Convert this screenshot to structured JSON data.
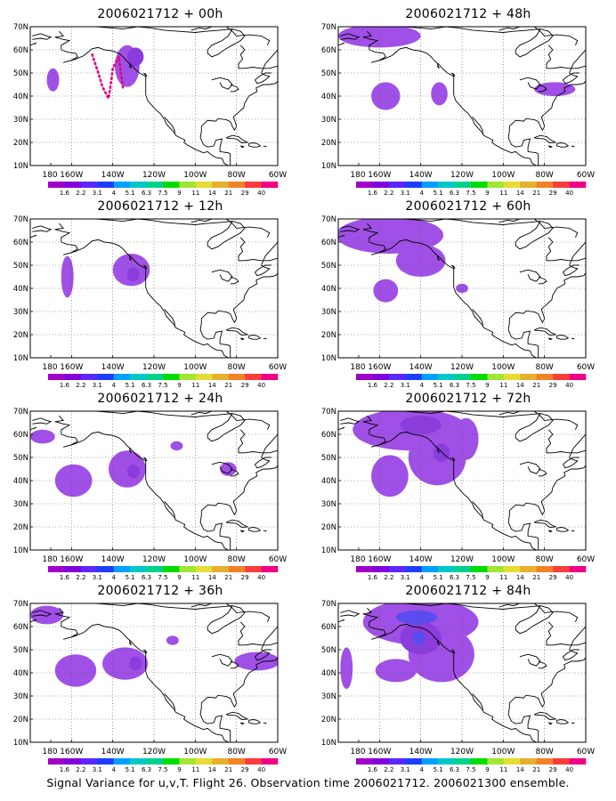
{
  "figure": {
    "footer": "Signal Variance for u,v,T. Flight 26. Observation time 2006021712. 2006021300 ensemble."
  },
  "colors": {
    "scale": [
      "#a000c8",
      "#8200dc",
      "#5a28ff",
      "#1e3cff",
      "#00a0ff",
      "#00c8c8",
      "#00d28c",
      "#00dc00",
      "#a0e632",
      "#e6dc32",
      "#e6af2d",
      "#f08228",
      "#fa3c3c",
      "#f00082"
    ],
    "shade_light": "#a050e6",
    "shade_mid": "#8a3cdc",
    "shade_dark": "#5a4cf0",
    "flight_track": "#e6007e"
  },
  "chart_data": {
    "type": "heatmap",
    "x_ticks": [
      "180",
      "160W",
      "140W",
      "120W",
      "100W",
      "80W",
      "60W"
    ],
    "y_ticks": [
      "10N",
      "20N",
      "30N",
      "40N",
      "50N",
      "60N",
      "70N"
    ],
    "xlim": [
      -180,
      -60
    ],
    "ylim": [
      10,
      70
    ],
    "grid": true,
    "colorbar_labels": [
      "1.6",
      "2.2",
      "3.1",
      "4",
      "5.1",
      "6.3",
      "7.5",
      "9",
      "11",
      "14",
      "21",
      "29",
      "40"
    ],
    "panels": [
      {
        "title": "2006021712 + 00h",
        "lead": "00h",
        "flight_track": [
          [
            -150,
            58
          ],
          [
            -147,
            50
          ],
          [
            -145,
            44
          ],
          [
            -142,
            39
          ],
          [
            -141,
            45
          ],
          [
            -140,
            52
          ],
          [
            -137,
            57
          ],
          [
            -136,
            50
          ],
          [
            -135,
            43
          ]
        ],
        "blobs": [
          {
            "lon": -169,
            "lat": 47,
            "rx": 3,
            "ry": 5,
            "level": 1
          },
          {
            "lon": -133,
            "lat": 53,
            "rx": 6,
            "ry": 9,
            "level": 1
          },
          {
            "lon": -129,
            "lat": 57,
            "rx": 4,
            "ry": 4,
            "level": 2
          }
        ]
      },
      {
        "title": "2006021712 + 12h",
        "lead": "12h",
        "blobs": [
          {
            "lon": -162,
            "lat": 45,
            "rx": 3,
            "ry": 9,
            "level": 1
          },
          {
            "lon": -131,
            "lat": 48,
            "rx": 9,
            "ry": 7,
            "level": 1
          },
          {
            "lon": -130,
            "lat": 46,
            "rx": 3,
            "ry": 3,
            "level": 2
          }
        ]
      },
      {
        "title": "2006021712 + 24h",
        "lead": "24h",
        "blobs": [
          {
            "lon": -174,
            "lat": 59,
            "rx": 6,
            "ry": 3,
            "level": 1
          },
          {
            "lon": -159,
            "lat": 40,
            "rx": 9,
            "ry": 7,
            "level": 1
          },
          {
            "lon": -133,
            "lat": 45,
            "rx": 9,
            "ry": 8,
            "level": 1
          },
          {
            "lon": -130,
            "lat": 44,
            "rx": 3,
            "ry": 3,
            "level": 2
          },
          {
            "lon": -109,
            "lat": 55,
            "rx": 3,
            "ry": 2,
            "level": 1
          },
          {
            "lon": -84,
            "lat": 45,
            "rx": 4,
            "ry": 3,
            "level": 1
          }
        ]
      },
      {
        "title": "2006021712 + 36h",
        "lead": "36h",
        "blobs": [
          {
            "lon": -172,
            "lat": 65,
            "rx": 8,
            "ry": 4,
            "level": 1
          },
          {
            "lon": -158,
            "lat": 41,
            "rx": 10,
            "ry": 7,
            "level": 1
          },
          {
            "lon": -134,
            "lat": 44,
            "rx": 11,
            "ry": 7,
            "level": 1
          },
          {
            "lon": -129,
            "lat": 44,
            "rx": 3,
            "ry": 3,
            "level": 2
          },
          {
            "lon": -111,
            "lat": 54,
            "rx": 3,
            "ry": 2,
            "level": 1
          },
          {
            "lon": -70,
            "lat": 45,
            "rx": 11,
            "ry": 4,
            "level": 1
          }
        ]
      },
      {
        "title": "2006021712 + 48h",
        "lead": "48h",
        "blobs": [
          {
            "lon": -160,
            "lat": 66,
            "rx": 20,
            "ry": 5,
            "level": 1
          },
          {
            "lon": -157,
            "lat": 40,
            "rx": 7,
            "ry": 6,
            "level": 1
          },
          {
            "lon": -131,
            "lat": 41,
            "rx": 4,
            "ry": 5,
            "level": 1
          },
          {
            "lon": -75,
            "lat": 43,
            "rx": 10,
            "ry": 3,
            "level": 1
          }
        ]
      },
      {
        "title": "2006021712 + 60h",
        "lead": "60h",
        "blobs": [
          {
            "lon": -155,
            "lat": 63,
            "rx": 26,
            "ry": 8,
            "level": 1
          },
          {
            "lon": -157,
            "lat": 39,
            "rx": 6,
            "ry": 5,
            "level": 1
          },
          {
            "lon": -140,
            "lat": 52,
            "rx": 12,
            "ry": 7,
            "level": 1
          },
          {
            "lon": -120,
            "lat": 40,
            "rx": 3,
            "ry": 2,
            "level": 1
          }
        ]
      },
      {
        "title": "2006021712 + 72h",
        "lead": "72h",
        "blobs": [
          {
            "lon": -145,
            "lat": 62,
            "rx": 28,
            "ry": 9,
            "level": 1
          },
          {
            "lon": -140,
            "lat": 64,
            "rx": 10,
            "ry": 4,
            "level": 2
          },
          {
            "lon": -155,
            "lat": 42,
            "rx": 9,
            "ry": 9,
            "level": 1
          },
          {
            "lon": -132,
            "lat": 50,
            "rx": 14,
            "ry": 12,
            "level": 1
          },
          {
            "lon": -130,
            "lat": 52,
            "rx": 4,
            "ry": 4,
            "level": 2
          },
          {
            "lon": -118,
            "lat": 58,
            "rx": 6,
            "ry": 9,
            "level": 1
          }
        ]
      },
      {
        "title": "2006021712 + 84h",
        "lead": "84h",
        "blobs": [
          {
            "lon": -176,
            "lat": 42,
            "rx": 3,
            "ry": 9,
            "level": 1
          },
          {
            "lon": -140,
            "lat": 62,
            "rx": 28,
            "ry": 10,
            "level": 1
          },
          {
            "lon": -142,
            "lat": 64,
            "rx": 10,
            "ry": 3,
            "level": 3
          },
          {
            "lon": -140,
            "lat": 55,
            "rx": 10,
            "ry": 7,
            "level": 2
          },
          {
            "lon": -141,
            "lat": 55,
            "rx": 3,
            "ry": 3,
            "level": 3
          },
          {
            "lon": -152,
            "lat": 41,
            "rx": 10,
            "ry": 5,
            "level": 1
          },
          {
            "lon": -130,
            "lat": 48,
            "rx": 16,
            "ry": 12,
            "level": 1
          }
        ]
      }
    ]
  }
}
